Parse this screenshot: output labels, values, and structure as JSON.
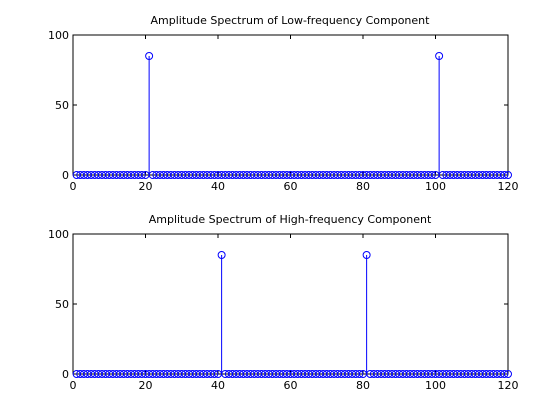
{
  "chart_data": [
    {
      "type": "stem",
      "title": "Amplitude Spectrum of Low-frequency Component",
      "xlabel": "",
      "ylabel": "",
      "xlim": [
        0,
        120
      ],
      "ylim": [
        0,
        100
      ],
      "xticks": [
        0,
        20,
        40,
        60,
        80,
        100,
        120
      ],
      "yticks": [
        0,
        50,
        100
      ],
      "grid": false,
      "color": "#0000ff",
      "x_start": 1,
      "x_end": 120,
      "baseline": 0,
      "peaks": [
        {
          "x": 21,
          "y": 85
        },
        {
          "x": 101,
          "y": 85
        }
      ]
    },
    {
      "type": "stem",
      "title": "Amplitude Spectrum of High-frequency Component",
      "xlabel": "",
      "ylabel": "",
      "xlim": [
        0,
        120
      ],
      "ylim": [
        0,
        100
      ],
      "xticks": [
        0,
        20,
        40,
        60,
        80,
        100,
        120
      ],
      "yticks": [
        0,
        50,
        100
      ],
      "grid": false,
      "color": "#0000ff",
      "x_start": 1,
      "x_end": 120,
      "baseline": 0,
      "peaks": [
        {
          "x": 41,
          "y": 85
        },
        {
          "x": 81,
          "y": 85
        }
      ]
    }
  ]
}
